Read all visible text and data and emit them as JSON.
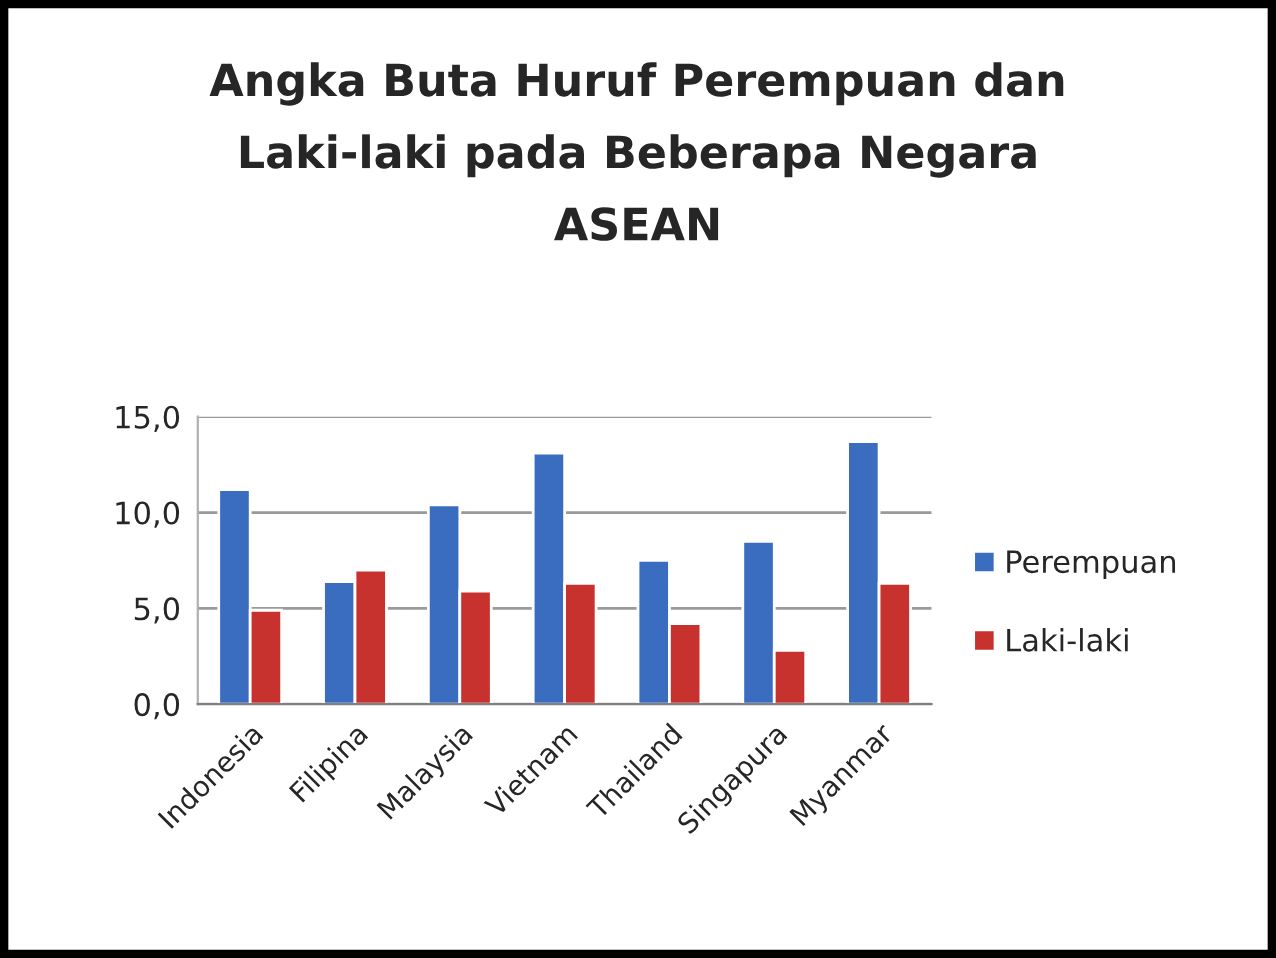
{
  "chart_data": {
    "type": "bar",
    "title": "Angka Buta Huruf Perempuan dan\nLaki-laki pada Beberapa Negara\nASEAN",
    "categories": [
      "Indonesia",
      "Filipina",
      "Malaysia",
      "Vietnam",
      "Thailand",
      "Singapura",
      "Myanmar"
    ],
    "series": [
      {
        "name": "Perempuan",
        "color": "#3a6cbf",
        "values": [
          11.2,
          6.4,
          10.4,
          13.1,
          7.5,
          8.5,
          13.7
        ]
      },
      {
        "name": "Laki-laki",
        "color": "#c8322e",
        "values": [
          4.9,
          7.0,
          5.9,
          6.3,
          4.2,
          2.8,
          6.3
        ]
      }
    ],
    "ylim": [
      0,
      15
    ],
    "yticks": [
      {
        "value": 0,
        "label": "0,0"
      },
      {
        "value": 5,
        "label": "5,0"
      },
      {
        "value": 10,
        "label": "10,0"
      },
      {
        "value": 15,
        "label": "15,0"
      }
    ],
    "grid": "y",
    "legend": "right"
  }
}
